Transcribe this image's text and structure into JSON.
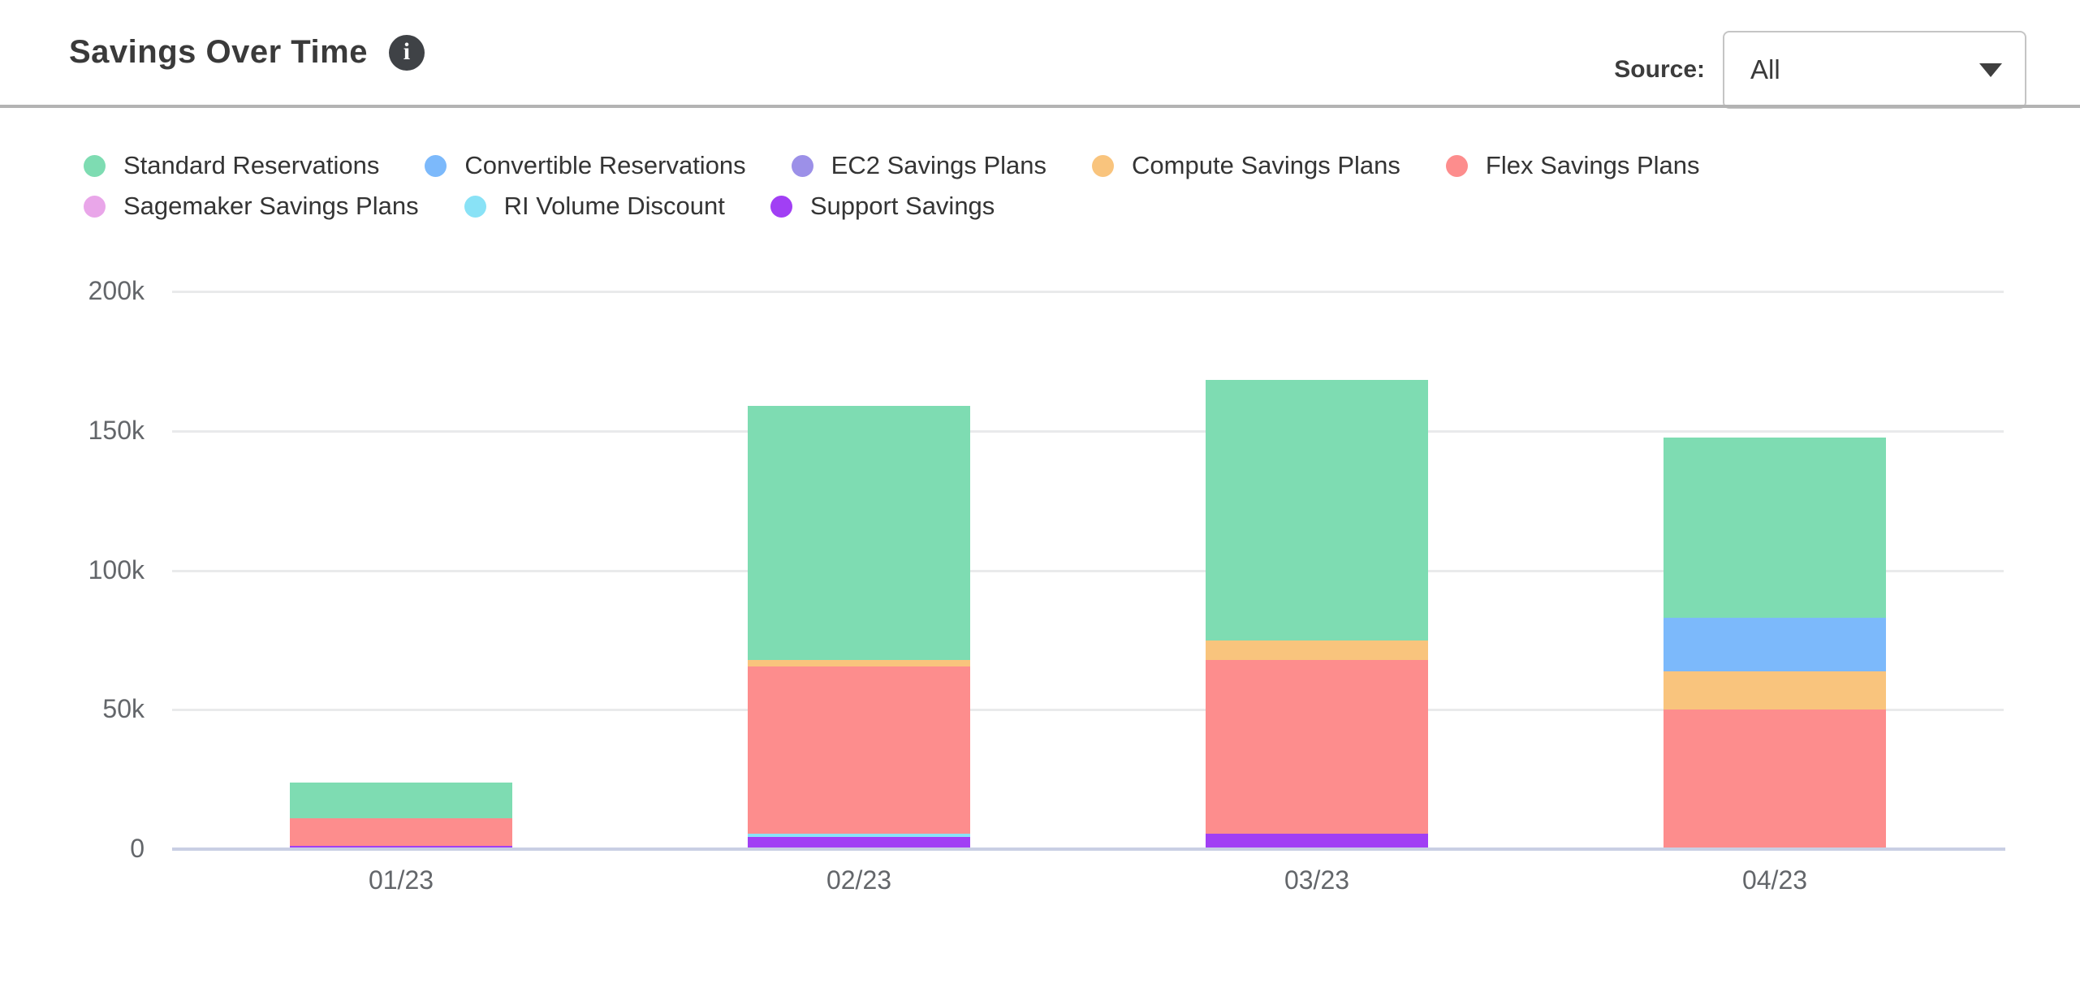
{
  "header": {
    "title": "Savings Over Time",
    "info_glyph": "i",
    "source_label": "Source:",
    "source_value": "All"
  },
  "chart_data": {
    "type": "bar",
    "stacked": true,
    "title": "Savings Over Time",
    "categories": [
      "01/23",
      "02/23",
      "03/23",
      "04/23"
    ],
    "series": [
      {
        "name": "Standard Reservations",
        "color": "#7EDCB2",
        "values": [
          12600,
          91200,
          93500,
          64500
        ]
      },
      {
        "name": "Convertible Reservations",
        "color": "#7CB9FB",
        "values": [
          0,
          0,
          0,
          19400
        ]
      },
      {
        "name": "EC2 Savings Plans",
        "color": "#9C90E8",
        "values": [
          0,
          0,
          0,
          0
        ]
      },
      {
        "name": "Compute Savings Plans",
        "color": "#F9C47D",
        "values": [
          0,
          2300,
          6800,
          13700
        ]
      },
      {
        "name": "Flex Savings Plans",
        "color": "#FD8D8D",
        "values": [
          10000,
          60000,
          62300,
          50000
        ]
      },
      {
        "name": "Sagemaker Savings Plans",
        "color": "#E9A6E9",
        "values": [
          0,
          0,
          0,
          0
        ]
      },
      {
        "name": "RI Volume Discount",
        "color": "#89E2F6",
        "values": [
          0,
          1100,
          0,
          0
        ]
      },
      {
        "name": "Support Savings",
        "color": "#A13FF4",
        "values": [
          1200,
          4400,
          5600,
          0
        ]
      }
    ],
    "stack_order_bottom_to_top": [
      "Support Savings",
      "RI Volume Discount",
      "Sagemaker Savings Plans",
      "Flex Savings Plans",
      "Compute Savings Plans",
      "EC2 Savings Plans",
      "Convertible Reservations",
      "Standard Reservations"
    ],
    "ylim": [
      0,
      200000
    ],
    "yticks": [
      {
        "value": 0,
        "label": "0"
      },
      {
        "value": 50000,
        "label": "50k"
      },
      {
        "value": 100000,
        "label": "100k"
      },
      {
        "value": 150000,
        "label": "150k"
      },
      {
        "value": 200000,
        "label": "200k"
      }
    ],
    "grid": true,
    "legend_position": "top"
  }
}
